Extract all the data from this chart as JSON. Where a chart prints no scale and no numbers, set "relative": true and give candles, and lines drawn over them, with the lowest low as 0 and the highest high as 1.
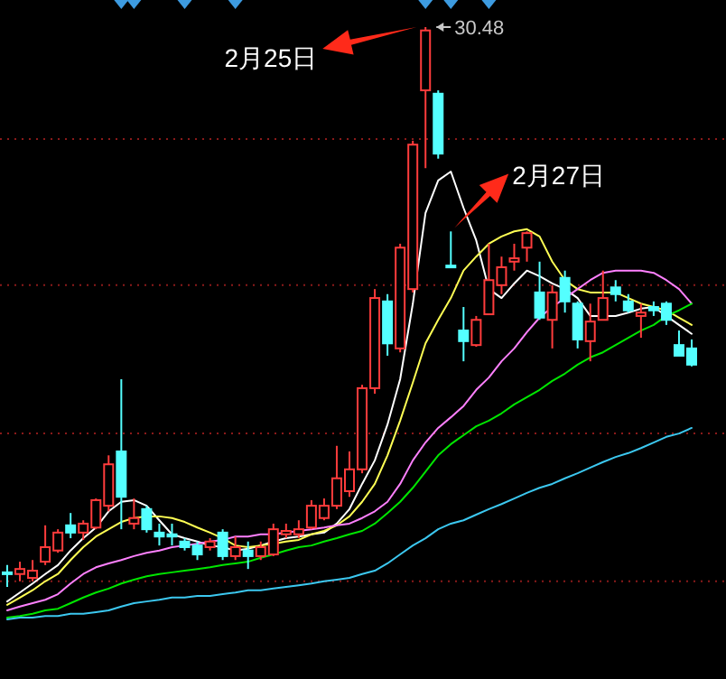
{
  "chart_data": {
    "type": "candlestick",
    "relative": true,
    "categories": [
      null,
      null,
      null,
      null,
      null,
      null,
      null,
      null,
      null,
      null,
      null,
      null,
      null,
      null,
      null,
      null,
      null,
      null,
      null,
      null,
      null,
      null,
      null,
      null,
      null,
      null,
      null,
      null,
      null,
      null,
      null,
      null,
      null,
      null,
      null,
      null,
      null,
      null,
      null,
      null,
      null,
      null,
      null,
      null,
      null,
      null,
      null,
      null,
      null,
      null,
      null,
      null,
      null,
      null,
      null
    ],
    "ohlc": [
      [
        0.026,
        0.039,
        0,
        0.023
      ],
      [
        0.023,
        0.045,
        0.01,
        0.032
      ],
      [
        0.016,
        0.048,
        0.01,
        0.029
      ],
      [
        0.045,
        0.11,
        0.039,
        0.071
      ],
      [
        0.065,
        0.103,
        0.061,
        0.097
      ],
      [
        0.11,
        0.132,
        0.087,
        0.097
      ],
      [
        0.097,
        0.119,
        0.084,
        0.113
      ],
      [
        0.106,
        0.158,
        0.103,
        0.155
      ],
      [
        0.145,
        0.235,
        0.135,
        0.219
      ],
      [
        0.242,
        0.371,
        0.103,
        0.161
      ],
      [
        0.113,
        0.158,
        0.103,
        0.123
      ],
      [
        0.139,
        0.145,
        0.097,
        0.103
      ],
      [
        0.097,
        0.113,
        0.074,
        0.09
      ],
      [
        0.094,
        0.113,
        0.074,
        0.09
      ],
      [
        0.081,
        0.087,
        0.065,
        0.071
      ],
      [
        0.074,
        0.081,
        0.048,
        0.058
      ],
      [
        0.071,
        0.087,
        0.065,
        0.081
      ],
      [
        0.097,
        0.103,
        0.048,
        0.055
      ],
      [
        0.055,
        0.09,
        0.048,
        0.071
      ],
      [
        0.065,
        0.081,
        0.032,
        0.055
      ],
      [
        0.055,
        0.081,
        0.048,
        0.071
      ],
      [
        0.058,
        0.113,
        0.055,
        0.103
      ],
      [
        0.094,
        0.113,
        0.087,
        0.1
      ],
      [
        0.094,
        0.119,
        0.087,
        0.103
      ],
      [
        0.106,
        0.155,
        0.103,
        0.145
      ],
      [
        0.123,
        0.158,
        0.119,
        0.145
      ],
      [
        0.145,
        0.252,
        0.139,
        0.194
      ],
      [
        0.171,
        0.242,
        0.161,
        0.21
      ],
      [
        0.21,
        0.361,
        0.203,
        0.355
      ],
      [
        0.355,
        0.532,
        0.345,
        0.516
      ],
      [
        0.51,
        0.523,
        0.413,
        0.435
      ],
      [
        0.426,
        0.613,
        0.419,
        0.606
      ],
      [
        0.532,
        0.797,
        0.526,
        0.79
      ],
      [
        0.887,
        1.0,
        0.748,
        0.994
      ],
      [
        0.881,
        0.887,
        0.765,
        0.774
      ],
      [
        0.574,
        0.635,
        0.571,
        0.571
      ],
      [
        0.458,
        0.5,
        0.403,
        0.439
      ],
      [
        0.432,
        0.484,
        0.429,
        0.477
      ],
      [
        0.487,
        0.613,
        0.487,
        0.548
      ],
      [
        0.539,
        0.59,
        0.523,
        0.571
      ],
      [
        0.581,
        0.613,
        0.565,
        0.587
      ],
      [
        0.606,
        0.635,
        0.581,
        0.632
      ],
      [
        0.526,
        0.581,
        0.477,
        0.481
      ],
      [
        0.477,
        0.539,
        0.426,
        0.526
      ],
      [
        0.552,
        0.565,
        0.49,
        0.51
      ],
      [
        0.506,
        0.51,
        0.426,
        0.442
      ],
      [
        0.439,
        0.506,
        0.403,
        0.474
      ],
      [
        0.477,
        0.565,
        0.477,
        0.516
      ],
      [
        0.535,
        0.548,
        0.51,
        0.523
      ],
      [
        0.51,
        0.523,
        0.49,
        0.494
      ],
      [
        0.484,
        0.506,
        0.445,
        0.49
      ],
      [
        0.5,
        0.51,
        0.484,
        0.494
      ],
      [
        0.506,
        0.51,
        0.468,
        0.477
      ],
      [
        0.432,
        0.458,
        0.413,
        0.413
      ],
      [
        0.426,
        0.442,
        0.394,
        0.397
      ]
    ],
    "series": [
      {
        "type": "line",
        "color": "#ffffff",
        "values": [
          -0.026,
          -0.01,
          0.006,
          0.023,
          0.039,
          0.065,
          0.087,
          0.106,
          0.135,
          0.152,
          0.155,
          0.145,
          0.119,
          0.094,
          0.087,
          0.081,
          0.074,
          0.071,
          0.065,
          0.068,
          0.074,
          0.081,
          0.087,
          0.09,
          0.094,
          0.097,
          0.113,
          0.139,
          0.184,
          0.226,
          0.29,
          0.371,
          0.506,
          0.668,
          0.726,
          0.742,
          0.677,
          0.619,
          0.532,
          0.516,
          0.542,
          0.565,
          0.555,
          0.542,
          0.532,
          0.516,
          0.484,
          0.484,
          0.484,
          0.49,
          0.497,
          0.5,
          0.484,
          0.468,
          0.452
        ]
      },
      {
        "type": "line",
        "color": "#ffff54",
        "values": [
          -0.032,
          -0.019,
          -0.006,
          0.01,
          0.023,
          0.048,
          0.071,
          0.09,
          0.103,
          0.116,
          0.123,
          0.126,
          0.126,
          0.123,
          0.116,
          0.106,
          0.097,
          0.087,
          0.074,
          0.071,
          0.074,
          0.077,
          0.081,
          0.084,
          0.094,
          0.1,
          0.11,
          0.126,
          0.152,
          0.184,
          0.235,
          0.297,
          0.365,
          0.435,
          0.477,
          0.516,
          0.565,
          0.59,
          0.613,
          0.626,
          0.635,
          0.639,
          0.626,
          0.581,
          0.548,
          0.532,
          0.526,
          0.526,
          0.526,
          0.516,
          0.506,
          0.5,
          0.494,
          0.481,
          0.468
        ]
      },
      {
        "type": "line",
        "color": "#ff80ff",
        "values": [
          -0.042,
          -0.035,
          -0.029,
          -0.023,
          -0.013,
          0.006,
          0.023,
          0.035,
          0.042,
          0.048,
          0.055,
          0.061,
          0.065,
          0.071,
          0.074,
          0.077,
          0.081,
          0.084,
          0.09,
          0.09,
          0.094,
          0.094,
          0.097,
          0.1,
          0.103,
          0.106,
          0.11,
          0.113,
          0.123,
          0.135,
          0.152,
          0.184,
          0.226,
          0.258,
          0.284,
          0.303,
          0.323,
          0.352,
          0.374,
          0.403,
          0.426,
          0.455,
          0.481,
          0.5,
          0.516,
          0.532,
          0.548,
          0.561,
          0.565,
          0.565,
          0.565,
          0.561,
          0.548,
          0.532,
          0.506
        ]
      },
      {
        "type": "line",
        "color": "#00e600",
        "values": [
          -0.055,
          -0.052,
          -0.048,
          -0.042,
          -0.039,
          -0.029,
          -0.019,
          -0.01,
          -0.003,
          0.006,
          0.013,
          0.019,
          0.023,
          0.026,
          0.029,
          0.032,
          0.035,
          0.039,
          0.042,
          0.045,
          0.052,
          0.058,
          0.065,
          0.071,
          0.074,
          0.081,
          0.087,
          0.094,
          0.1,
          0.113,
          0.132,
          0.152,
          0.177,
          0.206,
          0.235,
          0.255,
          0.271,
          0.287,
          0.297,
          0.31,
          0.326,
          0.339,
          0.352,
          0.368,
          0.381,
          0.397,
          0.41,
          0.419,
          0.432,
          0.445,
          0.458,
          0.468,
          0.484,
          0.494,
          0.506
        ]
      },
      {
        "type": "line",
        "color": "#3cc8f0",
        "values": [
          -0.058,
          -0.055,
          -0.055,
          -0.052,
          -0.052,
          -0.048,
          -0.048,
          -0.045,
          -0.042,
          -0.035,
          -0.029,
          -0.026,
          -0.023,
          -0.019,
          -0.019,
          -0.016,
          -0.016,
          -0.013,
          -0.01,
          -0.006,
          -0.006,
          -0.003,
          0,
          0.003,
          0.006,
          0.01,
          0.013,
          0.016,
          0.023,
          0.029,
          0.042,
          0.058,
          0.074,
          0.087,
          0.103,
          0.113,
          0.119,
          0.129,
          0.139,
          0.148,
          0.158,
          0.168,
          0.177,
          0.184,
          0.194,
          0.203,
          0.213,
          0.223,
          0.232,
          0.239,
          0.248,
          0.258,
          0.268,
          0.274,
          0.284
        ]
      }
    ],
    "ref_lines": [
      {
        "axis": "y",
        "value": 0.8,
        "color": "#8b1a1a",
        "line_style": "dotted"
      },
      {
        "axis": "y",
        "value": 0.539,
        "color": "#8b1a1a",
        "line_style": "dotted"
      },
      {
        "axis": "y",
        "value": 0.274,
        "color": "#8b1a1a",
        "line_style": "dotted"
      },
      {
        "axis": "y",
        "value": 0.01,
        "color": "#8b1a1a",
        "line_style": "dotted"
      }
    ],
    "annotations": [
      "2月25日",
      "2月27日",
      "30.48"
    ]
  }
}
